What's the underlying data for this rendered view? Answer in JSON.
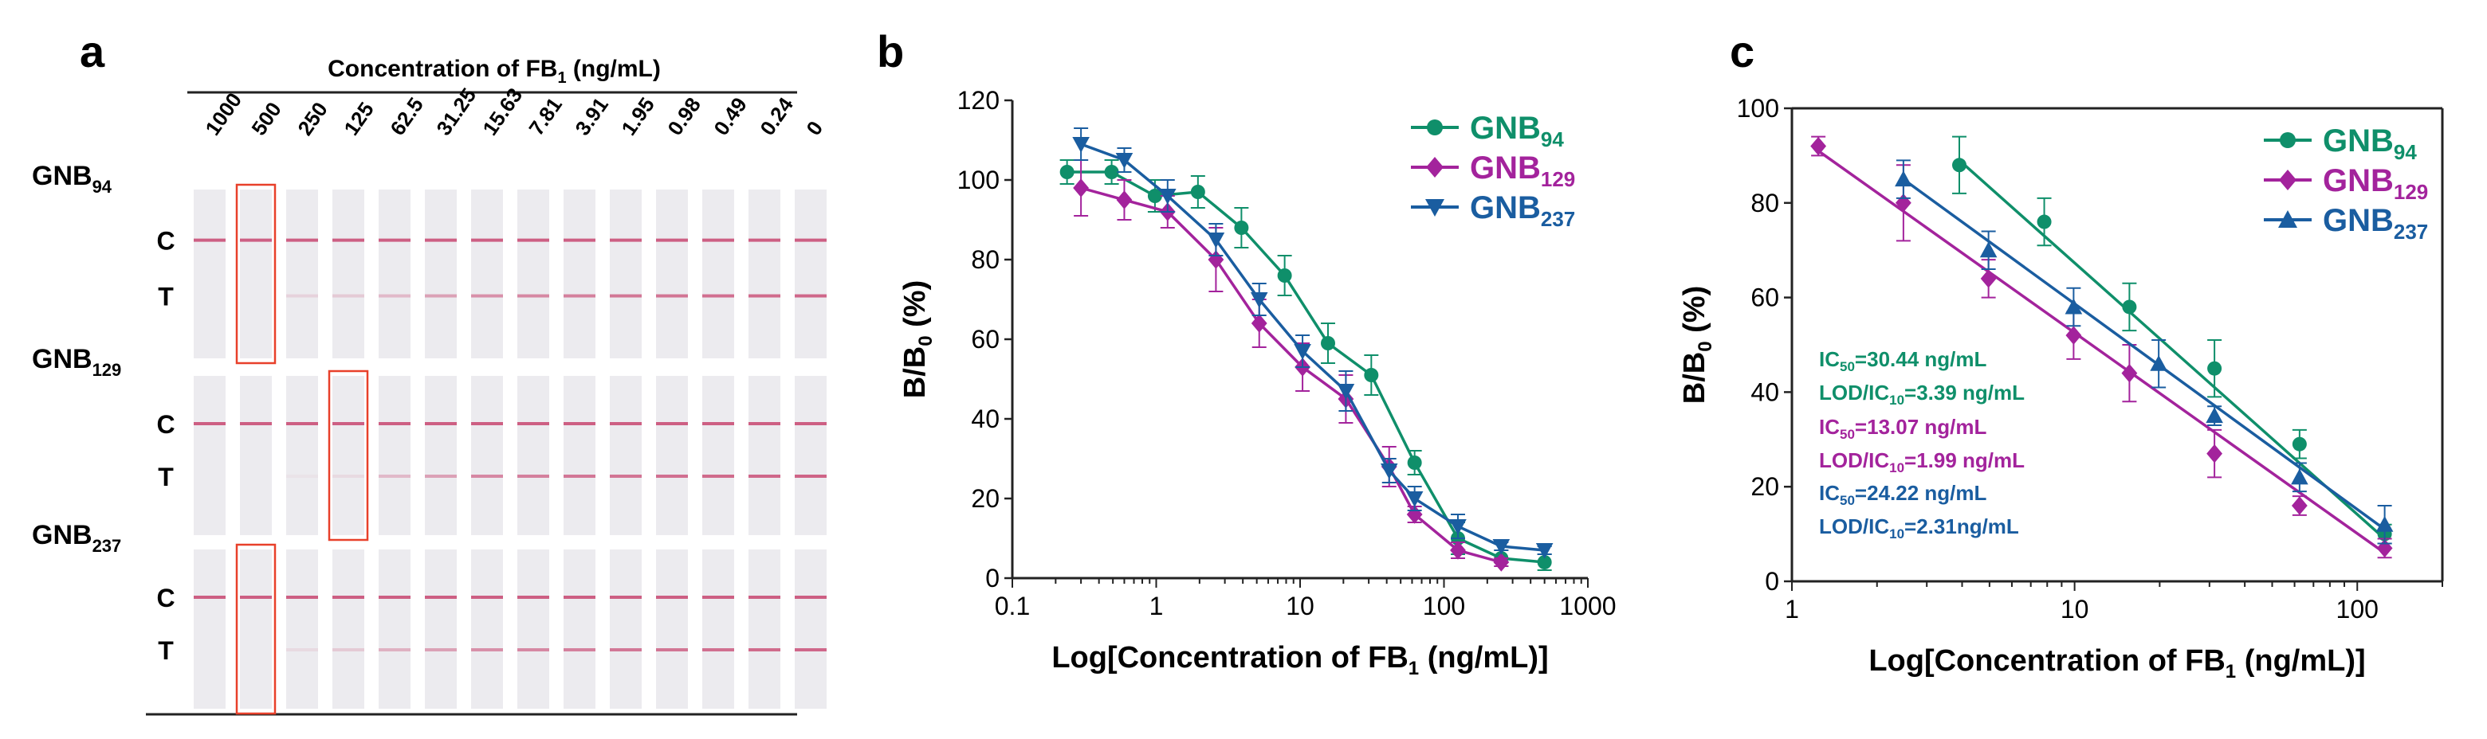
{
  "panels": {
    "a": {
      "letter": "a",
      "header_text": "Concentration of FB",
      "header_sub": "1",
      "header_unit": " (ng/mL)",
      "concentrations": [
        "1000",
        "500",
        "250",
        "125",
        "62.5",
        "31.25",
        "15.63",
        "7.81",
        "3.91",
        "1.95",
        "0.98",
        "0.49",
        "0.24",
        "0"
      ],
      "line_labels": {
        "control": "C",
        "test": "T"
      },
      "rows": [
        {
          "name": "GNB",
          "sub": "94",
          "highlight_index": 1,
          "t_intensity": [
            0,
            0,
            0.15,
            0.2,
            0.3,
            0.45,
            0.55,
            0.6,
            0.65,
            0.7,
            0.72,
            0.75,
            0.78,
            0.8
          ]
        },
        {
          "name": "GNB",
          "sub": "129",
          "highlight_index": 3,
          "t_intensity": [
            0,
            0,
            0.05,
            0.1,
            0.3,
            0.45,
            0.6,
            0.65,
            0.7,
            0.72,
            0.75,
            0.78,
            0.8,
            0.82
          ]
        },
        {
          "name": "GNB",
          "sub": "237",
          "highlight_index": 1,
          "t_intensity": [
            0,
            0,
            0.1,
            0.2,
            0.35,
            0.45,
            0.55,
            0.6,
            0.65,
            0.7,
            0.72,
            0.75,
            0.78,
            0.8
          ]
        }
      ]
    },
    "b": {
      "letter": "b"
    },
    "c": {
      "letter": "c",
      "annotations": [
        {
          "label": "GNB94",
          "color": "#0f8f6a",
          "ic50": "30.44 ng/mL",
          "lod": "3.39 ng/mL"
        },
        {
          "label": "GNB129",
          "color": "#a3239c",
          "ic50": "13.07 ng/mL",
          "lod": "1.99 ng/mL"
        },
        {
          "label": "GNB237",
          "color": "#1a5da0",
          "ic50": "24.22 ng/mL",
          "lod": "2.31ng/mL"
        }
      ]
    }
  },
  "chart_data": [
    {
      "type": "line",
      "id": "b",
      "title": "",
      "xlabel": "Log[Concentration of FB1 (ng/mL)]",
      "ylabel": "B/B0 (%)",
      "xscale": "log",
      "xlim": [
        0.1,
        1000
      ],
      "ylim": [
        0,
        120
      ],
      "xticks": [
        0.1,
        1,
        10,
        100,
        1000
      ],
      "xtick_labels": [
        "0.1",
        "1",
        "10",
        "100",
        "1000"
      ],
      "yticks": [
        0,
        20,
        40,
        60,
        80,
        100,
        120
      ],
      "legend": "top-right",
      "series": [
        {
          "name": "GNB94",
          "color": "#0f8f6a",
          "marker": "circle",
          "x": [
            0.24,
            0.49,
            0.98,
            1.95,
            3.91,
            7.81,
            15.63,
            31.25,
            62.5,
            125,
            250,
            500
          ],
          "y": [
            102,
            102,
            96,
            97,
            88,
            76,
            59,
            51,
            29,
            10,
            5,
            4
          ],
          "err": [
            3,
            3,
            4,
            4,
            5,
            5,
            5,
            5,
            3,
            4,
            2,
            2
          ]
        },
        {
          "name": "GNB129",
          "color": "#a3239c",
          "marker": "diamond",
          "x": [
            0.3,
            0.6,
            1.2,
            2.6,
            5.2,
            10.4,
            20.8,
            41.6,
            62.5,
            125,
            250
          ],
          "y": [
            98,
            95,
            92,
            80,
            64,
            53,
            45,
            28,
            16,
            7,
            4
          ],
          "err": [
            7,
            5,
            4,
            8,
            6,
            6,
            6,
            5,
            2,
            2,
            1
          ]
        },
        {
          "name": "GNB237",
          "color": "#1a5da0",
          "marker": "triangle-down",
          "x": [
            0.3,
            0.6,
            1.2,
            2.6,
            5.2,
            10.4,
            20.8,
            41.6,
            62.5,
            125,
            250,
            500
          ],
          "y": [
            109,
            105,
            96,
            85,
            70,
            57,
            47,
            27,
            20,
            13,
            8,
            7
          ],
          "err": [
            4,
            3,
            4,
            4,
            4,
            4,
            5,
            3,
            3,
            3,
            1,
            1
          ]
        }
      ],
      "legend_entries": [
        {
          "base": "GNB",
          "sub": "94",
          "color": "#0f8f6a",
          "marker": "circle"
        },
        {
          "base": "GNB",
          "sub": "129",
          "color": "#a3239c",
          "marker": "diamond"
        },
        {
          "base": "GNB",
          "sub": "237",
          "color": "#1a5da0",
          "marker": "triangle-down"
        }
      ]
    },
    {
      "type": "scatter",
      "id": "c",
      "title": "",
      "xlabel": "Log[Concentration of FB1 (ng/mL)]",
      "ylabel": "B/B0 (%)",
      "xscale": "log",
      "xlim": [
        1,
        200
      ],
      "ylim": [
        0,
        100
      ],
      "xticks": [
        1,
        10,
        100
      ],
      "xtick_labels": [
        "1",
        "10",
        "100"
      ],
      "yticks": [
        0,
        20,
        40,
        60,
        80,
        100
      ],
      "legend": "top-right",
      "series": [
        {
          "name": "GNB94",
          "color": "#0f8f6a",
          "marker": "circle",
          "x": [
            3.91,
            7.81,
            15.63,
            31.25,
            62.5,
            125
          ],
          "y": [
            88,
            76,
            58,
            45,
            29,
            10
          ],
          "err": [
            6,
            5,
            5,
            6,
            3,
            2
          ],
          "fit": [
            [
              3.91,
              89
            ],
            [
              125,
              9
            ]
          ]
        },
        {
          "name": "GNB129",
          "color": "#a3239c",
          "marker": "diamond",
          "x": [
            1.24,
            2.48,
            4.96,
            9.92,
            15.63,
            31.25,
            62.5,
            125
          ],
          "y": [
            92,
            80,
            64,
            52,
            44,
            27,
            16,
            7
          ],
          "err": [
            2,
            8,
            4,
            5,
            6,
            5,
            2,
            2
          ],
          "fit": [
            [
              1.24,
              91
            ],
            [
              125,
              6
            ]
          ]
        },
        {
          "name": "GNB237",
          "color": "#1a5da0",
          "marker": "triangle-up",
          "x": [
            2.48,
            4.96,
            9.92,
            19.84,
            31.25,
            62.5,
            125
          ],
          "y": [
            85,
            70,
            58,
            46,
            35,
            22,
            12
          ],
          "err": [
            4,
            4,
            4,
            5,
            2,
            3,
            4
          ],
          "fit": [
            [
              2.48,
              85
            ],
            [
              125,
              11
            ]
          ]
        }
      ],
      "legend_entries": [
        {
          "base": "GNB",
          "sub": "94",
          "color": "#0f8f6a",
          "marker": "circle"
        },
        {
          "base": "GNB",
          "sub": "129",
          "color": "#a3239c",
          "marker": "diamond"
        },
        {
          "base": "GNB",
          "sub": "237",
          "color": "#1a5da0",
          "marker": "triangle-up"
        }
      ]
    }
  ]
}
